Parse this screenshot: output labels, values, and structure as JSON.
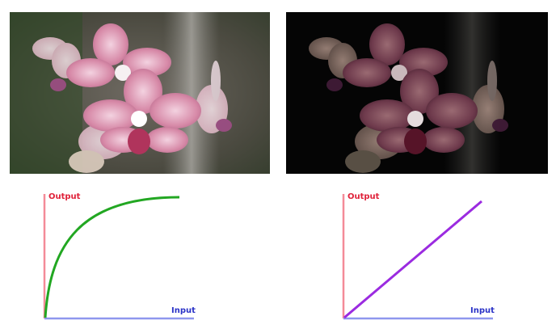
{
  "images": {
    "left": {
      "icon": "orchid-photo-original"
    },
    "right": {
      "icon": "orchid-photo-darkened"
    }
  },
  "graphs": [
    {
      "output_label": "Output",
      "input_label": "Input",
      "curve": "concave-saturating",
      "colors": {
        "output_axis": "#f48b98",
        "input_axis": "#8f97ee",
        "curve": "#22a722",
        "output_text": "#e0223a",
        "input_text": "#2b33c7"
      }
    },
    {
      "output_label": "Output",
      "input_label": "Input",
      "curve": "linear",
      "colors": {
        "output_axis": "#f48b98",
        "input_axis": "#8f97ee",
        "curve": "#9b2be0",
        "output_text": "#e0223a",
        "input_text": "#2b33c7"
      }
    }
  ]
}
